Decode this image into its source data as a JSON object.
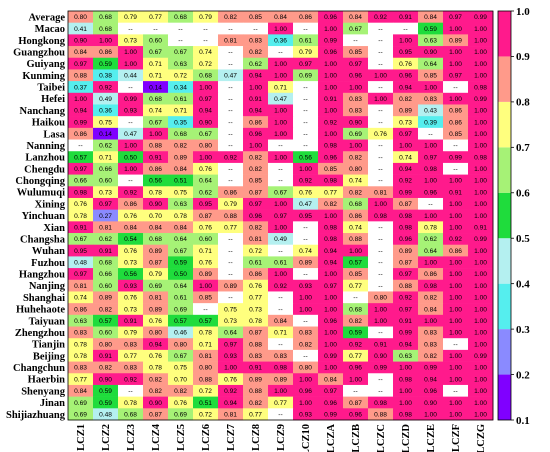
{
  "chart_data": {
    "type": "heatmap",
    "title": "",
    "xlabel": "",
    "ylabel": "",
    "columns": [
      "LCZ1",
      "LCZ2",
      "LCZ3",
      "LCZ4",
      "LCZ5",
      "LCZ6",
      "LCZ7",
      "LCZ8",
      "LCZ9",
      "LCZ10",
      "LCZA",
      "LCZB",
      "LCZC",
      "LCZD",
      "LCZE",
      "LCZF",
      "LCZG"
    ],
    "rows": [
      "Average",
      "Macao",
      "Hongkong",
      "Guangzhou",
      "Guiyang",
      "Kunming",
      "Taibei",
      "Hefei",
      "Nanchang",
      "Haikou",
      "Lasa",
      "Nanning",
      "Lanzhou",
      "Chengdu",
      "Chongqing",
      "Wulumuqi",
      "Xining",
      "Yinchuan",
      "Xian",
      "Changsha",
      "Wuhan",
      "Fuzhou",
      "Hangzhou",
      "Nanjing",
      "Shanghai",
      "Huhehaote",
      "Taiyuan",
      "Zhengzhou",
      "Tianjin",
      "Beijing",
      "Changchun",
      "Haerbin",
      "Shenyang",
      "Jinan",
      "Shijiazhuang"
    ],
    "values": [
      [
        "0.80",
        "0.68",
        "0.79",
        "0.77",
        "0.68",
        "0.79",
        "0.82",
        "0.85",
        "0.84",
        "0.86",
        "0.96",
        "0.84",
        "0.92",
        "0.91",
        "0.84",
        "0.97",
        "0.99"
      ],
      [
        "0.41",
        "0.68",
        "--",
        "--",
        "--",
        "--",
        "--",
        "--",
        "1.00",
        "--",
        "1.00",
        "0.67",
        "--",
        "--",
        "0.59",
        "1.00",
        "1.00"
      ],
      [
        "0.90",
        "1.00",
        "0.73",
        "0.60",
        "--",
        "--",
        "0.81",
        "0.83",
        "0.36",
        "0.61",
        "0.99",
        "--",
        "--",
        "1.00",
        "0.63",
        "0.89",
        "1.00"
      ],
      [
        "0.84",
        "0.86",
        "1.00",
        "0.67",
        "0.67",
        "0.74",
        "--",
        "0.82",
        "--",
        "0.79",
        "0.96",
        "0.85",
        "--",
        "0.95",
        "0.90",
        "1.00",
        "1.00"
      ],
      [
        "0.97",
        "0.59",
        "1.00",
        "0.71",
        "0.63",
        "0.72",
        "--",
        "0.62",
        "1.00",
        "0.97",
        "1.00",
        "0.97",
        "--",
        "0.76",
        "0.64",
        "1.00",
        "1.00"
      ],
      [
        "0.88",
        "0.38",
        "0.44",
        "0.71",
        "0.72",
        "0.68",
        "0.47",
        "0.94",
        "1.00",
        "0.69",
        "1.00",
        "0.96",
        "1.00",
        "0.96",
        "0.85",
        "0.97",
        "1.00"
      ],
      [
        "0.37",
        "0.92",
        "--",
        "0.14",
        "0.34",
        "1.00",
        "--",
        "1.00",
        "0.71",
        "--",
        "1.00",
        "1.00",
        "--",
        "0.94",
        "1.00",
        "--",
        "0.98"
      ],
      [
        "1.00",
        "0.49",
        "0.99",
        "0.68",
        "0.61",
        "0.97",
        "--",
        "0.91",
        "0.47",
        "--",
        "0.91",
        "0.83",
        "1.00",
        "0.82",
        "0.83",
        "1.00",
        "0.99"
      ],
      [
        "0.94",
        "0.36",
        "0.93",
        "0.74",
        "0.71",
        "0.94",
        "--",
        "0.94",
        "1.00",
        "--",
        "1.00",
        "0.83",
        "--",
        "0.89",
        "0.43",
        "0.86",
        "1.00"
      ],
      [
        "0.99",
        "0.75",
        "--",
        "0.67",
        "0.35",
        "0.90",
        "--",
        "0.86",
        "1.00",
        "--",
        "0.92",
        "0.90",
        "--",
        "0.73",
        "0.39",
        "0.86",
        "1.00"
      ],
      [
        "0.86",
        "0.14",
        "0.47",
        "1.00",
        "0.68",
        "0.67",
        "--",
        "0.96",
        "1.00",
        "--",
        "1.00",
        "0.69",
        "0.76",
        "0.97",
        "--",
        "0.85",
        "1.00"
      ],
      [
        "--",
        "0.62",
        "1.00",
        "0.88",
        "0.82",
        "0.80",
        "--",
        "1.00",
        "--",
        "--",
        "0.98",
        "1.00",
        "--",
        "1.00",
        "1.00",
        "--",
        "1.00"
      ],
      [
        "0.57",
        "0.71",
        "0.50",
        "0.91",
        "0.89",
        "1.00",
        "0.92",
        "0.82",
        "1.00",
        "0.56",
        "0.96",
        "0.82",
        "--",
        "0.74",
        "0.97",
        "0.99",
        "0.98"
      ],
      [
        "0.97",
        "0.66",
        "1.00",
        "0.86",
        "0.84",
        "0.76",
        "--",
        "0.82",
        "--",
        "1.00",
        "0.85",
        "0.80",
        "--",
        "0.94",
        "0.98",
        "--",
        "1.00"
      ],
      [
        "0.66",
        "0.60",
        "--",
        "0.56",
        "0.51",
        "0.64",
        "--",
        "0.85",
        "--",
        "0.92",
        "0.98",
        "0.74",
        "--",
        "0.92",
        "1.00",
        "1.00",
        "1.00"
      ],
      [
        "0.98",
        "0.73",
        "0.92",
        "0.78",
        "0.75",
        "0.62",
        "0.86",
        "0.87",
        "0.67",
        "0.76",
        "0.77",
        "0.82",
        "0.81",
        "0.99",
        "0.96",
        "0.91",
        "1.00"
      ],
      [
        "0.76",
        "0.97",
        "0.86",
        "0.90",
        "0.63",
        "0.95",
        "0.79",
        "0.97",
        "1.00",
        "0.47",
        "0.82",
        "0.68",
        "1.00",
        "0.87",
        "--",
        "1.00",
        "1.00"
      ],
      [
        "0.78",
        "0.27",
        "0.76",
        "0.70",
        "0.78",
        "0.87",
        "0.88",
        "0.96",
        "0.97",
        "0.95",
        "1.00",
        "0.86",
        "0.98",
        "0.98",
        "1.00",
        "1.00",
        "1.00"
      ],
      [
        "0.91",
        "0.81",
        "0.84",
        "0.84",
        "0.84",
        "0.76",
        "0.77",
        "0.82",
        "1.00",
        "--",
        "0.98",
        "0.74",
        "--",
        "0.98",
        "0.78",
        "1.00",
        "0.91"
      ],
      [
        "0.67",
        "0.62",
        "0.54",
        "0.68",
        "0.64",
        "0.60",
        "--",
        "0.81",
        "0.49",
        "--",
        "0.98",
        "0.88",
        "--",
        "0.96",
        "0.62",
        "0.92",
        "0.99"
      ],
      [
        "0.95",
        "0.91",
        "0.76",
        "0.89",
        "0.67",
        "0.71",
        "--",
        "0.72",
        "--",
        "0.74",
        "0.94",
        "1.00",
        "--",
        "0.89",
        "0.64",
        "0.86",
        "1.00"
      ],
      [
        "0.48",
        "0.68",
        "0.73",
        "0.87",
        "0.59",
        "0.76",
        "--",
        "0.61",
        "0.61",
        "0.89",
        "0.94",
        "0.57",
        "--",
        "0.87",
        "1.00",
        "1.00",
        "1.00"
      ],
      [
        "0.97",
        "0.66",
        "0.56",
        "0.79",
        "0.50",
        "0.89",
        "--",
        "0.86",
        "1.00",
        "--",
        "1.00",
        "0.85",
        "--",
        "0.97",
        "0.86",
        "1.00",
        "1.00"
      ],
      [
        "0.81",
        "0.60",
        "0.93",
        "0.69",
        "0.64",
        "1.00",
        "0.89",
        "0.76",
        "0.92",
        "0.93",
        "0.97",
        "0.77",
        "--",
        "0.88",
        "0.98",
        "1.00",
        "1.00"
      ],
      [
        "0.74",
        "0.89",
        "0.76",
        "0.81",
        "0.61",
        "0.85",
        "--",
        "0.77",
        "--",
        "1.00",
        "1.00",
        "--",
        "0.80",
        "0.92",
        "0.82",
        "1.00",
        "1.00"
      ],
      [
        "0.86",
        "0.82",
        "0.73",
        "0.89",
        "0.69",
        "--",
        "0.75",
        "0.73",
        "--",
        "1.00",
        "1.00",
        "0.68",
        "1.00",
        "0.97",
        "0.84",
        "1.00",
        "1.00"
      ],
      [
        "0.63",
        "0.57",
        "0.91",
        "0.76",
        "0.57",
        "0.57",
        "0.73",
        "0.78",
        "0.84",
        "--",
        "0.96",
        "0.82",
        "1.00",
        "0.91",
        "1.00",
        "1.00",
        "1.00"
      ],
      [
        "0.83",
        "0.60",
        "0.79",
        "0.80",
        "0.46",
        "0.78",
        "0.64",
        "0.87",
        "0.71",
        "0.83",
        "1.00",
        "0.59",
        "--",
        "0.99",
        "0.83",
        "1.00",
        "1.00"
      ],
      [
        "0.78",
        "0.80",
        "0.83",
        "0.94",
        "0.80",
        "0.71",
        "0.97",
        "0.88",
        "--",
        "0.82",
        "1.00",
        "0.92",
        "0.91",
        "0.94",
        "0.83",
        "--",
        "1.00"
      ],
      [
        "0.78",
        "0.91",
        "0.77",
        "0.76",
        "0.67",
        "0.81",
        "0.93",
        "0.83",
        "0.83",
        "--",
        "0.99",
        "0.77",
        "0.90",
        "0.63",
        "0.82",
        "1.00",
        "0.99"
      ],
      [
        "0.83",
        "0.82",
        "0.83",
        "0.78",
        "0.75",
        "0.80",
        "1.00",
        "0.91",
        "0.98",
        "0.80",
        "1.00",
        "0.96",
        "0.99",
        "1.00",
        "0.99",
        "1.00",
        "1.00"
      ],
      [
        "0.77",
        "0.90",
        "0.92",
        "0.82",
        "0.70",
        "0.88",
        "0.76",
        "0.89",
        "0.89",
        "1.00",
        "0.84",
        "1.00",
        "--",
        "0.98",
        "0.94",
        "1.00",
        "1.00"
      ],
      [
        "0.84",
        "0.59",
        "--",
        "0.82",
        "0.82",
        "0.72",
        "0.92",
        "0.88",
        "1.00",
        "0.96",
        "0.97",
        "--",
        "--",
        "1.00",
        "0.96",
        "--",
        "1.00"
      ],
      [
        "0.69",
        "0.59",
        "0.78",
        "0.90",
        "0.76",
        "0.51",
        "0.94",
        "0.82",
        "0.77",
        "1.00",
        "0.96",
        "0.87",
        "0.98",
        "1.00",
        "0.90",
        "1.00",
        "1.00"
      ],
      [
        "0.69",
        "0.48",
        "0.68",
        "0.87",
        "0.69",
        "0.72",
        "0.81",
        "0.77",
        "--",
        "0.93",
        "0.99",
        "0.96",
        "0.88",
        "0.98",
        "1.00",
        "1.00",
        "1.00"
      ]
    ],
    "missing_label": "--",
    "missing_color": "#ffffff",
    "colorbar": {
      "min": 0.1,
      "max": 1.0,
      "ticks": [
        "0.1",
        "0.2",
        "0.3",
        "0.4",
        "0.5",
        "0.6",
        "0.7",
        "0.8",
        "0.9",
        "1.0"
      ],
      "bins": [
        {
          "from": 0.1,
          "to": 0.2,
          "color": "#8000ff"
        },
        {
          "from": 0.2,
          "to": 0.3,
          "color": "#8a8aff"
        },
        {
          "from": 0.3,
          "to": 0.4,
          "color": "#55eeee"
        },
        {
          "from": 0.4,
          "to": 0.5,
          "color": "#b4f0f0"
        },
        {
          "from": 0.5,
          "to": 0.6,
          "color": "#1fdc3c"
        },
        {
          "from": 0.6,
          "to": 0.7,
          "color": "#a6f276"
        },
        {
          "from": 0.7,
          "to": 0.8,
          "color": "#ffff7e"
        },
        {
          "from": 0.8,
          "to": 0.9,
          "color": "#ff9a8a"
        },
        {
          "from": 0.9,
          "to": 1.01,
          "color": "#ff1a8c"
        }
      ]
    },
    "grid": false,
    "legend": "right (discrete colorbar)"
  }
}
